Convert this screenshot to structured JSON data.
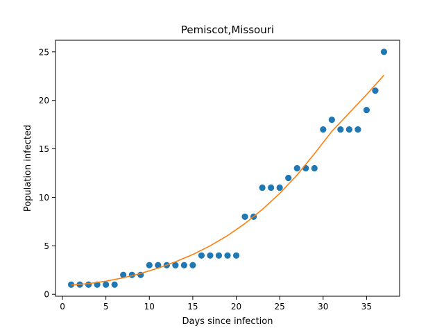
{
  "chart_data": {
    "type": "scatter",
    "title": "Pemiscot,Missouri",
    "xlabel": "Days since infection",
    "ylabel": "Population infected",
    "xlim": [
      -0.8,
      38.8
    ],
    "ylim": [
      -0.2,
      26.2
    ],
    "xticks": [
      0,
      5,
      10,
      15,
      20,
      25,
      30,
      35
    ],
    "yticks": [
      0,
      5,
      10,
      15,
      20,
      25
    ],
    "grid": false,
    "series": [
      {
        "kind": "scatter",
        "color": "#1f77b4",
        "points": [
          [
            1,
            1
          ],
          [
            2,
            1
          ],
          [
            3,
            1
          ],
          [
            4,
            1
          ],
          [
            5,
            1
          ],
          [
            6,
            1
          ],
          [
            7,
            2
          ],
          [
            8,
            2
          ],
          [
            9,
            2
          ],
          [
            10,
            3
          ],
          [
            11,
            3
          ],
          [
            12,
            3
          ],
          [
            13,
            3
          ],
          [
            14,
            3
          ],
          [
            15,
            3
          ],
          [
            16,
            4
          ],
          [
            17,
            4
          ],
          [
            18,
            4
          ],
          [
            19,
            4
          ],
          [
            20,
            4
          ],
          [
            21,
            8
          ],
          [
            22,
            8
          ],
          [
            23,
            11
          ],
          [
            24,
            11
          ],
          [
            25,
            11
          ],
          [
            26,
            12
          ],
          [
            27,
            13
          ],
          [
            28,
            13
          ],
          [
            29,
            13
          ],
          [
            30,
            17
          ],
          [
            31,
            18
          ],
          [
            32,
            17
          ],
          [
            33,
            17
          ],
          [
            34,
            17
          ],
          [
            35,
            19
          ],
          [
            36,
            21
          ],
          [
            37,
            25
          ]
        ]
      },
      {
        "kind": "line",
        "color": "#ff7f0e",
        "points": [
          [
            1,
            0.95
          ],
          [
            3,
            1.1
          ],
          [
            5,
            1.35
          ],
          [
            7,
            1.7
          ],
          [
            9,
            2.15
          ],
          [
            11,
            2.7
          ],
          [
            13,
            3.35
          ],
          [
            15,
            4.1
          ],
          [
            17,
            5.0
          ],
          [
            19,
            6.05
          ],
          [
            21,
            7.3
          ],
          [
            23,
            8.75
          ],
          [
            25,
            10.4
          ],
          [
            27,
            12.3
          ],
          [
            29,
            14.5
          ],
          [
            31,
            16.8
          ],
          [
            33,
            18.7
          ],
          [
            35,
            20.6
          ],
          [
            37,
            22.6
          ]
        ]
      }
    ]
  }
}
